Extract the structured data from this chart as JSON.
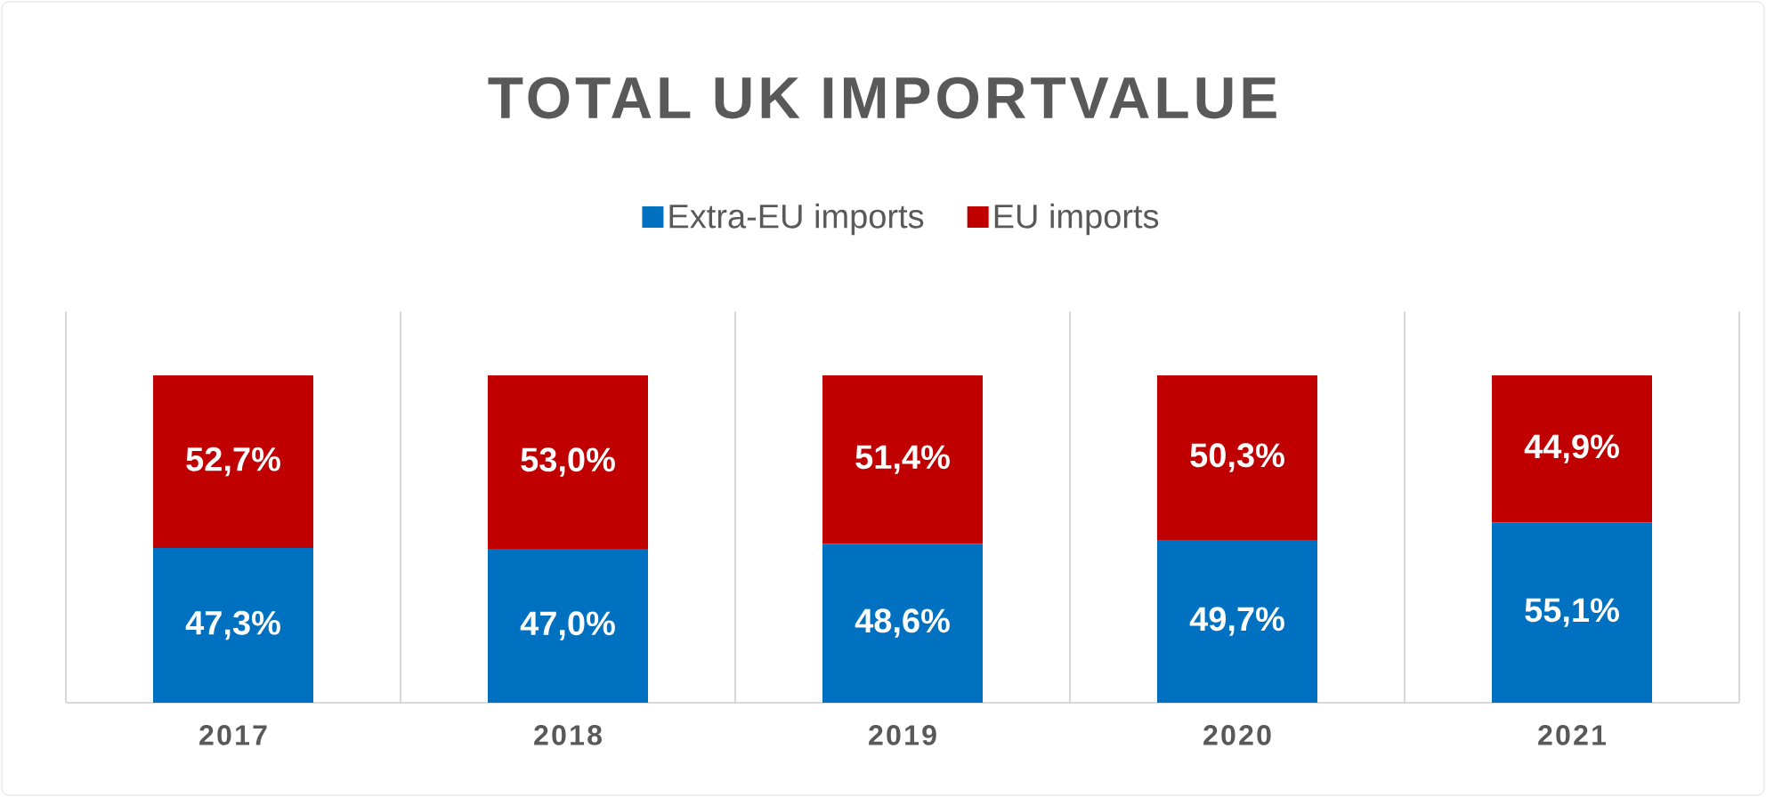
{
  "chart_data": {
    "type": "bar",
    "title": "TOTAL UK IMPORTVALUE",
    "categories": [
      "2017",
      "2018",
      "2019",
      "2020",
      "2021"
    ],
    "stacked": true,
    "grid": "x",
    "legend": "top",
    "tick_labels": "x",
    "series": [
      {
        "name": "Extra-EU imports",
        "color": "#0070c0",
        "values": [
          47.3,
          47.0,
          48.6,
          49.7,
          55.1
        ],
        "value_labels": [
          "47,3%",
          "47,0%",
          "48,6%",
          "49,7%",
          "55,1%"
        ]
      },
      {
        "name": "EU imports",
        "color": "#c00000",
        "values": [
          52.7,
          53.0,
          51.4,
          50.3,
          44.9
        ],
        "value_labels": [
          "52,7%",
          "53,0%",
          "51,4%",
          "50,3%",
          "44,9%"
        ]
      }
    ]
  }
}
